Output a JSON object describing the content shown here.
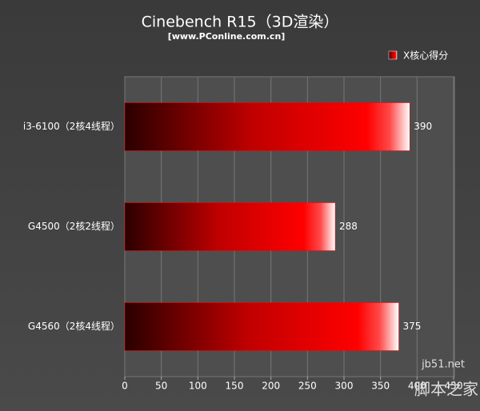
{
  "chart_data": {
    "type": "bar",
    "orientation": "horizontal",
    "title": "Cinebench R15（3D渲染）",
    "subtitle": "[www.PConline.com.cn]",
    "categories": [
      "i3-6100（2核4线程）",
      "G4500（2核2线程）",
      "G4560（2核4线程）"
    ],
    "series": [
      {
        "name": "X核心得分",
        "color": "#ff0000",
        "values": [
          390,
          288,
          375
        ]
      }
    ],
    "xlim": [
      0,
      450
    ],
    "xticks": [
      0,
      50,
      100,
      150,
      200,
      250,
      300,
      350,
      400,
      450
    ],
    "grid": true,
    "legend": "top-right",
    "watermark": [
      "jb51.net",
      "脚本之家"
    ]
  }
}
